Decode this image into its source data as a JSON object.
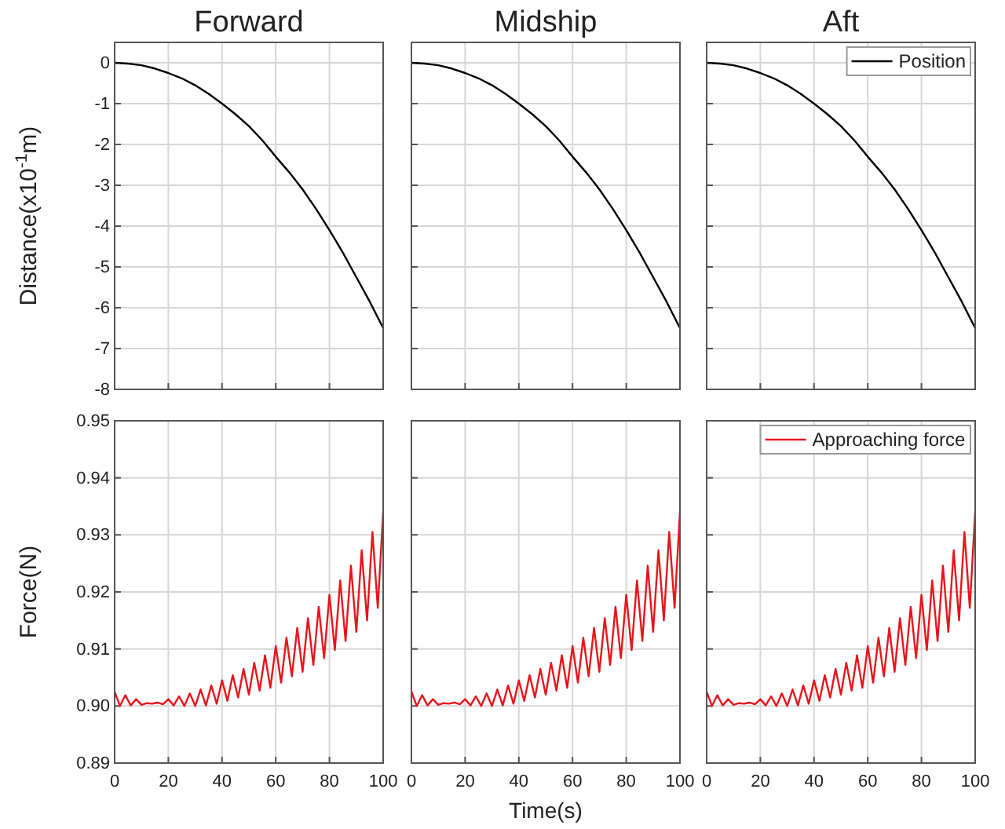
{
  "chart_data": [
    {
      "type": "line",
      "title": "Forward",
      "ylabel": "Distance(x10$^{-1}$m)",
      "xlim": [
        0,
        100
      ],
      "xticks": [
        0,
        20,
        40,
        60,
        80,
        100
      ],
      "ylim": [
        -8,
        0.5
      ],
      "yticks": [
        -8,
        -7,
        -6,
        -5,
        -4,
        -3,
        -2,
        -1,
        0
      ],
      "grid": true,
      "tick_labels": "y",
      "series": [
        {
          "color": "#000000",
          "x": [
            0,
            5,
            10,
            15,
            20,
            25,
            30,
            35,
            40,
            45,
            50,
            55,
            60,
            65,
            70,
            75,
            80,
            85,
            90,
            95,
            100
          ],
          "values": [
            0,
            -0.02,
            -0.06,
            -0.14,
            -0.25,
            -0.38,
            -0.55,
            -0.76,
            -1.0,
            -1.26,
            -1.55,
            -1.9,
            -2.3,
            -2.68,
            -3.1,
            -3.58,
            -4.1,
            -4.65,
            -5.25,
            -5.85,
            -6.5
          ]
        }
      ]
    },
    {
      "type": "line",
      "title": "Midship",
      "xlim": [
        0,
        100
      ],
      "xticks": [
        0,
        20,
        40,
        60,
        80,
        100
      ],
      "ylim": [
        -8,
        0.5
      ],
      "yticks": [
        -8,
        -7,
        -6,
        -5,
        -4,
        -3,
        -2,
        -1,
        0
      ],
      "grid": true,
      "tick_labels": false,
      "series": [
        {
          "color": "#000000",
          "x": [
            0,
            5,
            10,
            15,
            20,
            25,
            30,
            35,
            40,
            45,
            50,
            55,
            60,
            65,
            70,
            75,
            80,
            85,
            90,
            95,
            100
          ],
          "values": [
            0,
            -0.02,
            -0.06,
            -0.14,
            -0.25,
            -0.38,
            -0.55,
            -0.76,
            -1.0,
            -1.26,
            -1.55,
            -1.9,
            -2.3,
            -2.68,
            -3.1,
            -3.58,
            -4.1,
            -4.65,
            -5.25,
            -5.85,
            -6.5
          ]
        }
      ]
    },
    {
      "type": "line",
      "title": "Aft",
      "xlim": [
        0,
        100
      ],
      "xticks": [
        0,
        20,
        40,
        60,
        80,
        100
      ],
      "ylim": [
        -8,
        0.5
      ],
      "yticks": [
        -8,
        -7,
        -6,
        -5,
        -4,
        -3,
        -2,
        -1,
        0
      ],
      "grid": true,
      "tick_labels": false,
      "legend": "top right",
      "series": [
        {
          "name": "Position",
          "color": "#000000",
          "x": [
            0,
            5,
            10,
            15,
            20,
            25,
            30,
            35,
            40,
            45,
            50,
            55,
            60,
            65,
            70,
            75,
            80,
            85,
            90,
            95,
            100
          ],
          "values": [
            0,
            -0.02,
            -0.06,
            -0.14,
            -0.25,
            -0.38,
            -0.55,
            -0.76,
            -1.0,
            -1.26,
            -1.55,
            -1.9,
            -2.3,
            -2.68,
            -3.1,
            -3.58,
            -4.1,
            -4.65,
            -5.25,
            -5.85,
            -6.5
          ]
        }
      ]
    },
    {
      "type": "line",
      "ylabel": "Force(N)",
      "xlim": [
        0,
        100
      ],
      "xticks": [
        0,
        20,
        40,
        60,
        80,
        100
      ],
      "ylim": [
        0.89,
        0.95
      ],
      "yticks": [
        {
          "value": 0.89,
          "label": "0.89"
        },
        {
          "value": 0.9,
          "label": "0.90"
        },
        {
          "value": 0.91,
          "label": "0.91"
        },
        {
          "value": 0.92,
          "label": "0.92"
        },
        {
          "value": 0.93,
          "label": "0.93"
        },
        {
          "value": 0.94,
          "label": "0.94"
        },
        {
          "value": 0.95,
          "label": "0.95"
        }
      ],
      "grid": true,
      "series": [
        {
          "color": "#e8141c",
          "x": [
            0,
            2,
            4,
            6,
            8,
            10,
            12,
            14,
            16,
            18,
            20,
            22,
            24,
            26,
            28,
            30,
            32,
            34,
            36,
            38,
            40,
            42,
            44,
            46,
            48,
            50,
            52,
            54,
            56,
            58,
            60,
            62,
            64,
            66,
            68,
            70,
            72,
            74,
            76,
            78,
            80,
            82,
            84,
            86,
            88,
            90,
            92,
            94,
            96,
            98,
            100
          ],
          "values": [
            0.9025,
            0.9,
            0.9019,
            0.9001,
            0.9012,
            0.9002,
            0.9005,
            0.9004,
            0.9006,
            0.9003,
            0.9012,
            0.9001,
            0.9017,
            0.9,
            0.9022,
            0.9,
            0.9029,
            0.9001,
            0.9036,
            0.9004,
            0.9045,
            0.9009,
            0.9054,
            0.9015,
            0.9065,
            0.902,
            0.9076,
            0.9027,
            0.9089,
            0.9032,
            0.9105,
            0.9041,
            0.912,
            0.9052,
            0.9137,
            0.906,
            0.9154,
            0.9072,
            0.9174,
            0.9084,
            0.9195,
            0.9098,
            0.922,
            0.9114,
            0.9246,
            0.913,
            0.9273,
            0.915,
            0.9305,
            0.9172,
            0.934
          ]
        }
      ]
    },
    {
      "type": "line",
      "xlabel": "Time(s)",
      "xlim": [
        0,
        100
      ],
      "xticks": [
        0,
        20,
        40,
        60,
        80,
        100
      ],
      "ylim": [
        0.89,
        0.95
      ],
      "yticks": [
        0.89,
        0.9,
        0.91,
        0.92,
        0.93,
        0.94,
        0.95
      ],
      "grid": true,
      "tick_labels": "x",
      "series": [
        {
          "color": "#e8141c",
          "x": [
            0,
            2,
            4,
            6,
            8,
            10,
            12,
            14,
            16,
            18,
            20,
            22,
            24,
            26,
            28,
            30,
            32,
            34,
            36,
            38,
            40,
            42,
            44,
            46,
            48,
            50,
            52,
            54,
            56,
            58,
            60,
            62,
            64,
            66,
            68,
            70,
            72,
            74,
            76,
            78,
            80,
            82,
            84,
            86,
            88,
            90,
            92,
            94,
            96,
            98,
            100
          ],
          "values": [
            0.9025,
            0.9,
            0.9019,
            0.9001,
            0.9012,
            0.9002,
            0.9005,
            0.9004,
            0.9006,
            0.9003,
            0.9012,
            0.9001,
            0.9017,
            0.9,
            0.9022,
            0.9,
            0.9029,
            0.9001,
            0.9036,
            0.9004,
            0.9045,
            0.9009,
            0.9054,
            0.9015,
            0.9065,
            0.902,
            0.9076,
            0.9027,
            0.9089,
            0.9032,
            0.9105,
            0.9041,
            0.912,
            0.9052,
            0.9137,
            0.906,
            0.9154,
            0.9072,
            0.9174,
            0.9084,
            0.9195,
            0.9098,
            0.922,
            0.9114,
            0.9246,
            0.913,
            0.9273,
            0.915,
            0.9305,
            0.9172,
            0.934
          ]
        }
      ]
    },
    {
      "type": "line",
      "xlim": [
        0,
        100
      ],
      "xticks": [
        0,
        20,
        40,
        60,
        80,
        100
      ],
      "ylim": [
        0.89,
        0.95
      ],
      "yticks": [
        0.89,
        0.9,
        0.91,
        0.92,
        0.93,
        0.94,
        0.95
      ],
      "grid": true,
      "tick_labels": "x",
      "legend": "top right",
      "series": [
        {
          "name": "Approaching force",
          "color": "#e8141c",
          "x": [
            0,
            2,
            4,
            6,
            8,
            10,
            12,
            14,
            16,
            18,
            20,
            22,
            24,
            26,
            28,
            30,
            32,
            34,
            36,
            38,
            40,
            42,
            44,
            46,
            48,
            50,
            52,
            54,
            56,
            58,
            60,
            62,
            64,
            66,
            68,
            70,
            72,
            74,
            76,
            78,
            80,
            82,
            84,
            86,
            88,
            90,
            92,
            94,
            96,
            98,
            100
          ],
          "values": [
            0.9025,
            0.9,
            0.9019,
            0.9001,
            0.9012,
            0.9002,
            0.9005,
            0.9004,
            0.9006,
            0.9003,
            0.9012,
            0.9001,
            0.9017,
            0.9,
            0.9022,
            0.9,
            0.9029,
            0.9001,
            0.9036,
            0.9004,
            0.9045,
            0.9009,
            0.9054,
            0.9015,
            0.9065,
            0.902,
            0.9076,
            0.9027,
            0.9089,
            0.9032,
            0.9105,
            0.9041,
            0.912,
            0.9052,
            0.9137,
            0.906,
            0.9154,
            0.9072,
            0.9174,
            0.9084,
            0.9195,
            0.9098,
            0.922,
            0.9114,
            0.9246,
            0.913,
            0.9273,
            0.915,
            0.9305,
            0.9172,
            0.934
          ]
        }
      ]
    }
  ]
}
